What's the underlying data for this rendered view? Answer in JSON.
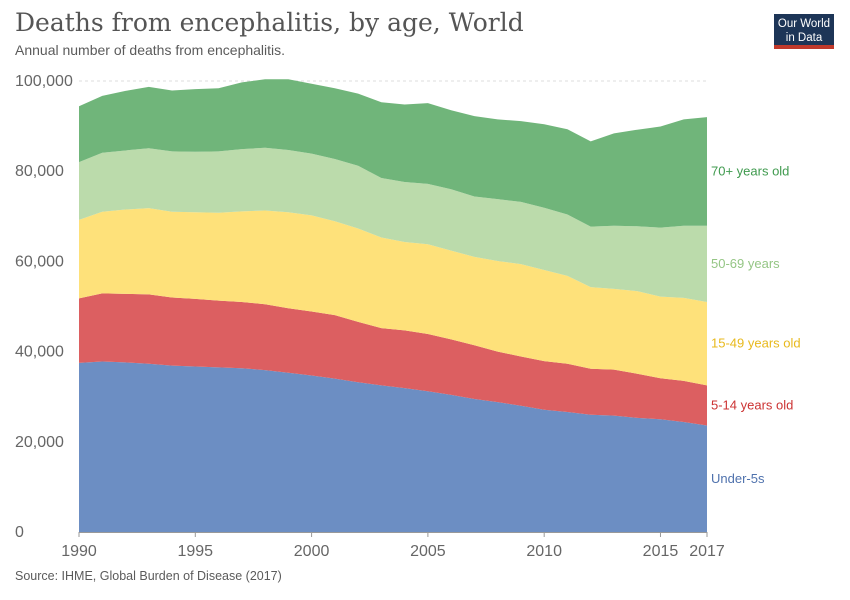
{
  "header": {
    "title": "Deaths from encephalitis, by age, World",
    "subtitle": "Annual number of deaths from encephalitis.",
    "logo_line1": "Our World",
    "logo_line2": "in Data"
  },
  "footer": {
    "source": "Source: IHME, Global Burden of Disease (2017)"
  },
  "colors": {
    "under5": "#6c8ec3",
    "age5_14": "#dc5f61",
    "age15_49": "#fee17a",
    "age50_69": "#bbdbab",
    "age70": "#70b57a",
    "grid": "#dddddd",
    "logo_bg": "#1d3557",
    "logo_bar": "#c0392b"
  },
  "chart_data": {
    "type": "area",
    "stacked": true,
    "x": [
      1990,
      1991,
      1992,
      1993,
      1994,
      1995,
      1996,
      1997,
      1998,
      1999,
      2000,
      2001,
      2002,
      2003,
      2004,
      2005,
      2006,
      2007,
      2008,
      2009,
      2010,
      2011,
      2012,
      2013,
      2014,
      2015,
      2016,
      2017
    ],
    "xlim": [
      1990,
      2017
    ],
    "ylim": [
      0,
      100000
    ],
    "x_ticks": [
      {
        "value": 1990,
        "label": "1990"
      },
      {
        "value": 1995,
        "label": "1995"
      },
      {
        "value": 2000,
        "label": "2000"
      },
      {
        "value": 2005,
        "label": "2005"
      },
      {
        "value": 2010,
        "label": "2010"
      },
      {
        "value": 2015,
        "label": "2015"
      },
      {
        "value": 2017,
        "label": "2017"
      }
    ],
    "y_ticks": [
      {
        "value": 0,
        "label": "0"
      },
      {
        "value": 20000,
        "label": "20,000"
      },
      {
        "value": 40000,
        "label": "40,000"
      },
      {
        "value": 60000,
        "label": "60,000"
      },
      {
        "value": 80000,
        "label": "80,000"
      },
      {
        "value": 100000,
        "label": "100,000"
      }
    ],
    "grid": true,
    "legend": "right-inline",
    "series": [
      {
        "name": "Under-5s",
        "key": "under5",
        "values": [
          37500,
          37800,
          37600,
          37300,
          36900,
          36700,
          36500,
          36300,
          35900,
          35300,
          34700,
          34000,
          33200,
          32500,
          31900,
          31200,
          30400,
          29500,
          28800,
          28000,
          27100,
          26600,
          26000,
          25800,
          25300,
          25000,
          24400,
          23600
        ]
      },
      {
        "name": "5-14 years old",
        "key": "age5_14",
        "values": [
          14300,
          15100,
          15200,
          15400,
          15100,
          15000,
          14800,
          14700,
          14600,
          14300,
          14200,
          14100,
          13400,
          12700,
          12800,
          12700,
          12300,
          11900,
          11200,
          10900,
          10800,
          10700,
          10200,
          10200,
          9800,
          9100,
          9100,
          8900
        ]
      },
      {
        "name": "15-49 years old",
        "key": "age15_49",
        "values": [
          17400,
          18100,
          18700,
          19100,
          19000,
          19200,
          19500,
          20100,
          20800,
          21300,
          21300,
          20800,
          20700,
          20100,
          19600,
          19900,
          19700,
          19600,
          20100,
          20500,
          20200,
          19500,
          18100,
          17900,
          18300,
          18100,
          18400,
          18500
        ]
      },
      {
        "name": "50-69 years",
        "key": "age50_69",
        "values": [
          12800,
          13100,
          13100,
          13300,
          13400,
          13400,
          13600,
          13800,
          13900,
          13800,
          13700,
          13800,
          13900,
          13200,
          13300,
          13400,
          13600,
          13400,
          13700,
          13800,
          13800,
          13600,
          13400,
          14000,
          14400,
          15300,
          16000,
          16900
        ]
      },
      {
        "name": "70+ years old",
        "key": "age70",
        "values": [
          12400,
          12600,
          13200,
          13600,
          13500,
          13900,
          14000,
          14800,
          15200,
          15700,
          15500,
          15700,
          16000,
          16800,
          17200,
          17900,
          17500,
          17800,
          17700,
          17900,
          18500,
          18900,
          18900,
          20500,
          21400,
          22400,
          23600,
          24100
        ]
      }
    ]
  }
}
